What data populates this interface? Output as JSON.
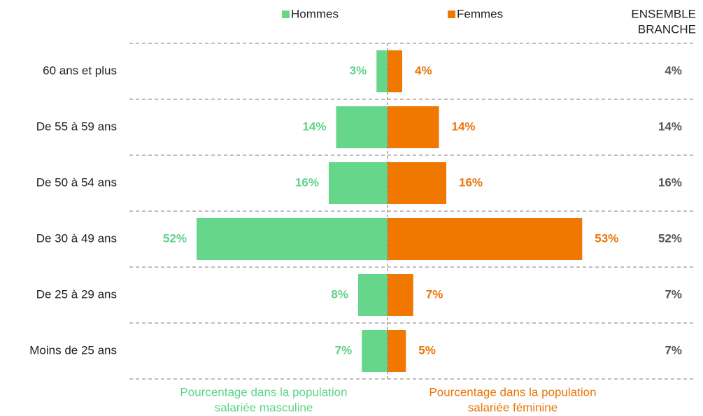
{
  "chart_data": {
    "type": "pyramid",
    "categories": [
      "60 ans et plus",
      "De 55 à 59 ans",
      "De 50 à 54 ans",
      "De 30 à 49 ans",
      "De 25 à 29 ans",
      "Moins de 25 ans"
    ],
    "series": [
      {
        "name": "Hommes",
        "color": "#66d68a",
        "side": "left",
        "values": [
          3,
          14,
          16,
          52,
          8,
          7
        ],
        "value_labels": [
          "3%",
          "14%",
          "16%",
          "52%",
          "8%",
          "7%"
        ]
      },
      {
        "name": "Femmes",
        "color": "#f07800",
        "side": "right",
        "values": [
          4,
          14,
          16,
          53,
          7,
          5
        ],
        "value_labels": [
          "4%",
          "14%",
          "16%",
          "53%",
          "7%",
          "5%"
        ]
      }
    ],
    "total": {
      "name": [
        "ENSEMBLE",
        "BRANCHE"
      ],
      "values": [
        4,
        14,
        16,
        52,
        7,
        7
      ],
      "value_labels": [
        "4%",
        "14%",
        "16%",
        "52%",
        "7%",
        "7%"
      ]
    },
    "x_label_left": [
      "Pourcentage dans la population",
      "salariée masculine"
    ],
    "x_label_right": [
      "Pourcentage dans la population",
      "salariée féminine"
    ],
    "grid": true
  }
}
